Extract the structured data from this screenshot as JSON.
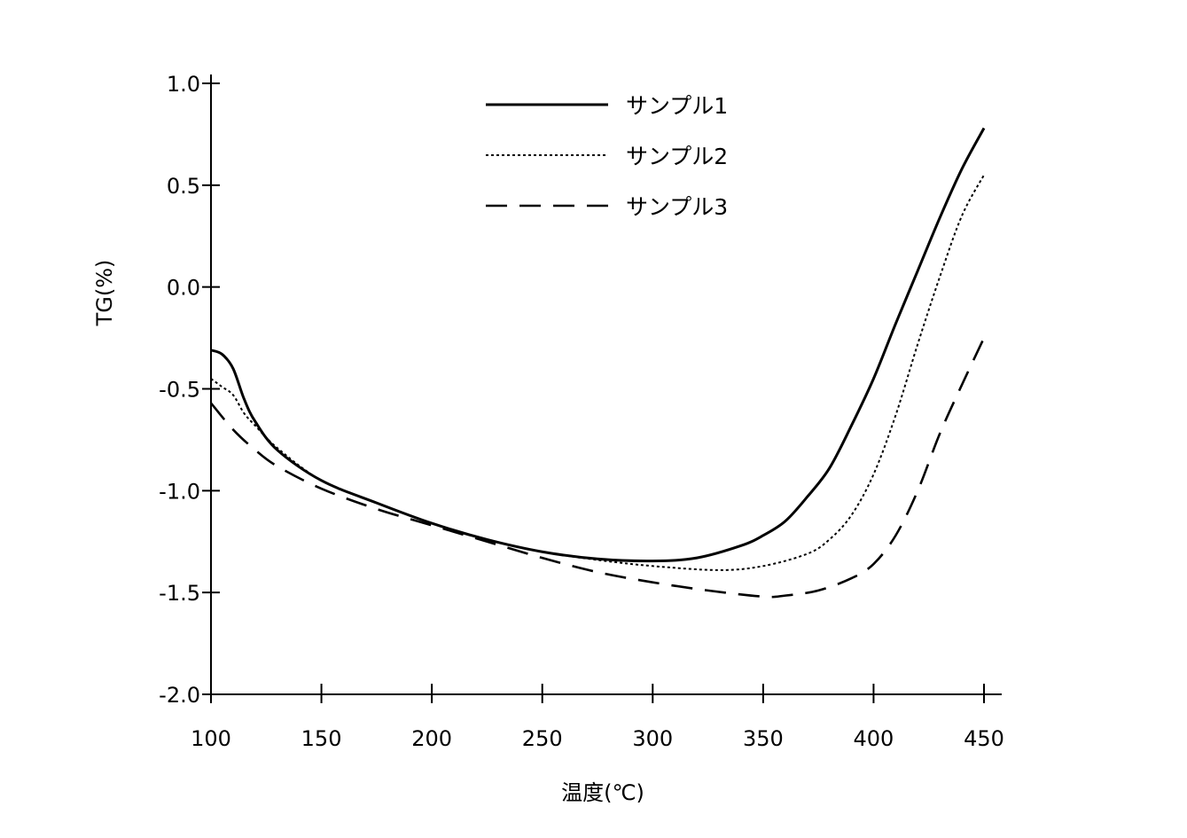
{
  "chart_data": {
    "type": "line",
    "title": "",
    "xlabel": "温度(℃)",
    "ylabel": "TG(%)",
    "xlim": [
      100,
      450
    ],
    "ylim": [
      -2.0,
      1.0
    ],
    "xticks": [
      100,
      150,
      200,
      250,
      300,
      350,
      400,
      450
    ],
    "xtick_labels": [
      "100",
      "150",
      "200",
      "250",
      "300",
      "350",
      "400",
      "450"
    ],
    "yticks": [
      1.0,
      0.5,
      0.0,
      -0.5,
      -1.0,
      -1.5,
      -2.0
    ],
    "ytick_labels": [
      "1.0",
      "0.5",
      "0.0",
      "-0.5",
      "-1.0",
      "-1.5",
      "-2.0"
    ],
    "grid": false,
    "legend_position": "top-center",
    "series": [
      {
        "name": "サンプル1",
        "style": "solid",
        "color": "#000000",
        "x": [
          100,
          105,
          110,
          115,
          120,
          130,
          150,
          175,
          200,
          225,
          250,
          275,
          300,
          320,
          340,
          350,
          360,
          370,
          380,
          390,
          400,
          410,
          420,
          430,
          440,
          450
        ],
        "y": [
          -0.31,
          -0.33,
          -0.4,
          -0.55,
          -0.66,
          -0.8,
          -0.95,
          -1.06,
          -1.16,
          -1.24,
          -1.3,
          -1.335,
          -1.345,
          -1.33,
          -1.27,
          -1.22,
          -1.15,
          -1.03,
          -0.89,
          -0.68,
          -0.45,
          -0.18,
          0.08,
          0.34,
          0.58,
          0.78
        ]
      },
      {
        "name": "サンプル2",
        "style": "dotted",
        "color": "#000000",
        "x": [
          100,
          105,
          110,
          115,
          120,
          130,
          150,
          175,
          200,
          225,
          250,
          275,
          300,
          330,
          350,
          370,
          380,
          390,
          400,
          410,
          420,
          430,
          440,
          450
        ],
        "y": [
          -0.45,
          -0.49,
          -0.53,
          -0.62,
          -0.68,
          -0.79,
          -0.95,
          -1.06,
          -1.16,
          -1.24,
          -1.3,
          -1.34,
          -1.37,
          -1.39,
          -1.37,
          -1.31,
          -1.24,
          -1.12,
          -0.92,
          -0.63,
          -0.28,
          0.05,
          0.35,
          0.55
        ]
      },
      {
        "name": "サンプル3",
        "style": "dashed",
        "color": "#000000",
        "x": [
          100,
          110,
          120,
          130,
          150,
          175,
          200,
          225,
          250,
          275,
          300,
          325,
          350,
          360,
          375,
          390,
          400,
          410,
          420,
          430,
          440,
          450
        ],
        "y": [
          -0.57,
          -0.7,
          -0.8,
          -0.88,
          -0.99,
          -1.09,
          -1.17,
          -1.25,
          -1.33,
          -1.4,
          -1.45,
          -1.49,
          -1.52,
          -1.515,
          -1.49,
          -1.43,
          -1.36,
          -1.22,
          -1.0,
          -0.72,
          -0.48,
          -0.25
        ]
      }
    ]
  }
}
